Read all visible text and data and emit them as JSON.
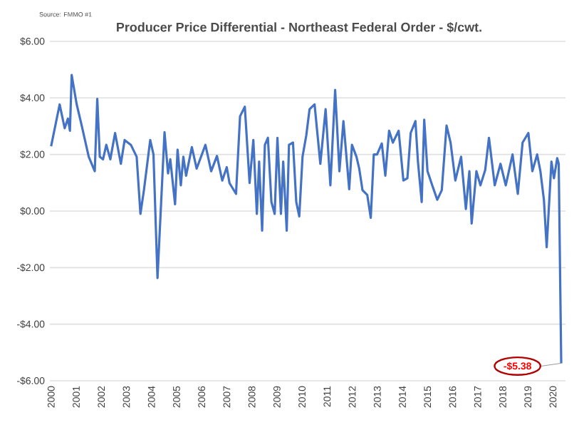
{
  "chart_data": {
    "type": "line",
    "title": "Producer Price Differential - Northeast Federal Order - $/cwt.",
    "x": [
      2000.0,
      2000.34,
      2000.54,
      2000.67,
      2000.75,
      2000.82,
      2001.02,
      2001.2,
      2001.5,
      2001.74,
      2001.84,
      2001.94,
      2002.07,
      2002.2,
      2002.36,
      2002.55,
      2002.78,
      2002.93,
      2003.18,
      2003.41,
      2003.56,
      2003.7,
      2003.95,
      2004.08,
      2004.24,
      2004.52,
      2004.66,
      2004.75,
      2004.94,
      2005.04,
      2005.17,
      2005.27,
      2005.38,
      2005.61,
      2005.8,
      2006.15,
      2006.38,
      2006.61,
      2006.82,
      2007.0,
      2007.11,
      2007.37,
      2007.53,
      2007.72,
      2007.91,
      2008.06,
      2008.2,
      2008.29,
      2008.41,
      2008.52,
      2008.64,
      2008.78,
      2008.91,
      2009.02,
      2009.16,
      2009.25,
      2009.39,
      2009.48,
      2009.64,
      2009.77,
      2009.89,
      2010.02,
      2010.17,
      2010.3,
      2010.5,
      2010.73,
      2010.94,
      2011.13,
      2011.32,
      2011.49,
      2011.65,
      2011.88,
      2011.99,
      2012.17,
      2012.28,
      2012.41,
      2012.6,
      2012.74,
      2012.86,
      2012.99,
      2013.18,
      2013.32,
      2013.47,
      2013.62,
      2013.85,
      2014.04,
      2014.2,
      2014.33,
      2014.52,
      2014.62,
      2014.77,
      2014.87,
      2015.0,
      2015.19,
      2015.39,
      2015.57,
      2015.76,
      2015.92,
      2016.11,
      2016.34,
      2016.53,
      2016.67,
      2016.76,
      2016.95,
      2017.11,
      2017.3,
      2017.45,
      2017.68,
      2017.91,
      2018.12,
      2018.39,
      2018.6,
      2018.79,
      2019.02,
      2019.18,
      2019.37,
      2019.5,
      2019.64,
      2019.75,
      2019.94,
      2020.04,
      2020.17,
      2020.23,
      2020.33
    ],
    "series": [
      {
        "color": "#4472c4",
        "values": [
          2.29,
          3.77,
          2.93,
          3.27,
          2.84,
          4.81,
          3.77,
          3.1,
          1.92,
          1.41,
          3.97,
          1.92,
          1.83,
          2.34,
          1.83,
          2.76,
          1.67,
          2.51,
          2.34,
          1.92,
          -0.1,
          0.74,
          2.51,
          2.0,
          -2.37,
          2.79,
          1.33,
          1.83,
          0.24,
          2.17,
          0.91,
          1.92,
          1.25,
          2.26,
          1.5,
          2.34,
          1.41,
          1.95,
          1.08,
          1.55,
          0.99,
          0.61,
          3.35,
          3.69,
          0.99,
          2.51,
          -0.1,
          1.75,
          -0.69,
          2.34,
          2.59,
          0.32,
          -0.1,
          2.59,
          -0.1,
          1.75,
          -0.69,
          2.34,
          2.42,
          0.32,
          -0.19,
          1.92,
          2.68,
          3.6,
          3.77,
          1.67,
          3.6,
          0.91,
          4.28,
          1.41,
          3.18,
          0.77,
          2.34,
          1.92,
          1.5,
          0.74,
          0.57,
          -0.24,
          2.0,
          2.0,
          2.39,
          1.25,
          2.84,
          2.42,
          2.84,
          1.08,
          1.16,
          2.76,
          3.18,
          1.75,
          0.32,
          3.23,
          1.41,
          0.91,
          0.4,
          0.74,
          3.02,
          2.42,
          1.08,
          1.92,
          0.07,
          1.41,
          -0.44,
          1.41,
          0.91,
          1.45,
          2.59,
          0.91,
          1.67,
          0.91,
          2.0,
          0.61,
          2.42,
          2.76,
          1.41,
          2.0,
          1.41,
          0.4,
          -1.28,
          1.75,
          1.16,
          1.87,
          1.67,
          -5.38
        ]
      }
    ],
    "xlim": [
      1999.95,
      2020.5
    ],
    "xticks": [
      2000,
      2001,
      2002,
      2003,
      2004,
      2005,
      2006,
      2007,
      2008,
      2009,
      2010,
      2011,
      2012,
      2013,
      2014,
      2015,
      2016,
      2017,
      2018,
      2019,
      2020
    ],
    "ylim": [
      -6,
      6
    ],
    "yticks": [
      {
        "value": -6,
        "label": "-$6.00"
      },
      {
        "value": -4,
        "label": "-$4.00"
      },
      {
        "value": -2,
        "label": "-$2.00"
      },
      {
        "value": 0,
        "label": "$0.00"
      },
      {
        "value": 2,
        "label": "$2.00"
      },
      {
        "value": 4,
        "label": "$4.00"
      },
      {
        "value": 6,
        "label": "$6.00"
      }
    ],
    "grid": "y",
    "annotations": [
      "Source: FMMO #1",
      {
        "text": "-$5.38",
        "x": 2020.33,
        "y": -5.38
      }
    ]
  }
}
